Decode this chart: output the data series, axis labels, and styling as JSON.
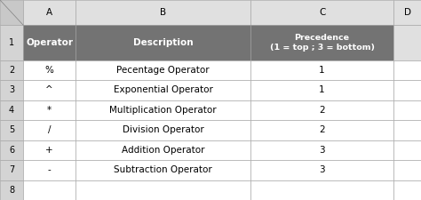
{
  "col_letters": [
    "A",
    "B",
    "C",
    "D"
  ],
  "row_numbers": [
    "1",
    "2",
    "3",
    "4",
    "5",
    "6",
    "7",
    "8"
  ],
  "header_row": {
    "operator": "Operator",
    "description": "Description",
    "precedence_line1": "Precedence",
    "precedence_line2": "(1 = top ; 3 = bottom)"
  },
  "operators": [
    "%",
    "^",
    "*",
    "/",
    "+",
    "-"
  ],
  "descriptions": [
    "Pecentage Operator",
    "Exponential Operator",
    "Multiplication Operator",
    "Division Operator",
    "Addition Operator",
    "Subtraction Operator"
  ],
  "precedences": [
    "1",
    "1",
    "2",
    "2",
    "3",
    "3"
  ],
  "header_bg": "#737373",
  "header_text_color": "#ffffff",
  "cell_bg": "#ffffff",
  "cell_text_color": "#000000",
  "grid_color": "#a0a0a0",
  "row_num_bg": "#d4d4d4",
  "col_letter_bg": "#e0e0e0",
  "corner_bg": "#c8c8c8",
  "outer_bg": "#e8e8e8",
  "figsize": [
    4.74,
    2.25
  ],
  "dpi": 100,
  "col_letter_fontsize": 7.5,
  "row_num_fontsize": 7,
  "header_fontsize": 7.5,
  "data_fontsize": 7.5,
  "prec_header_fontsize": 6.8
}
